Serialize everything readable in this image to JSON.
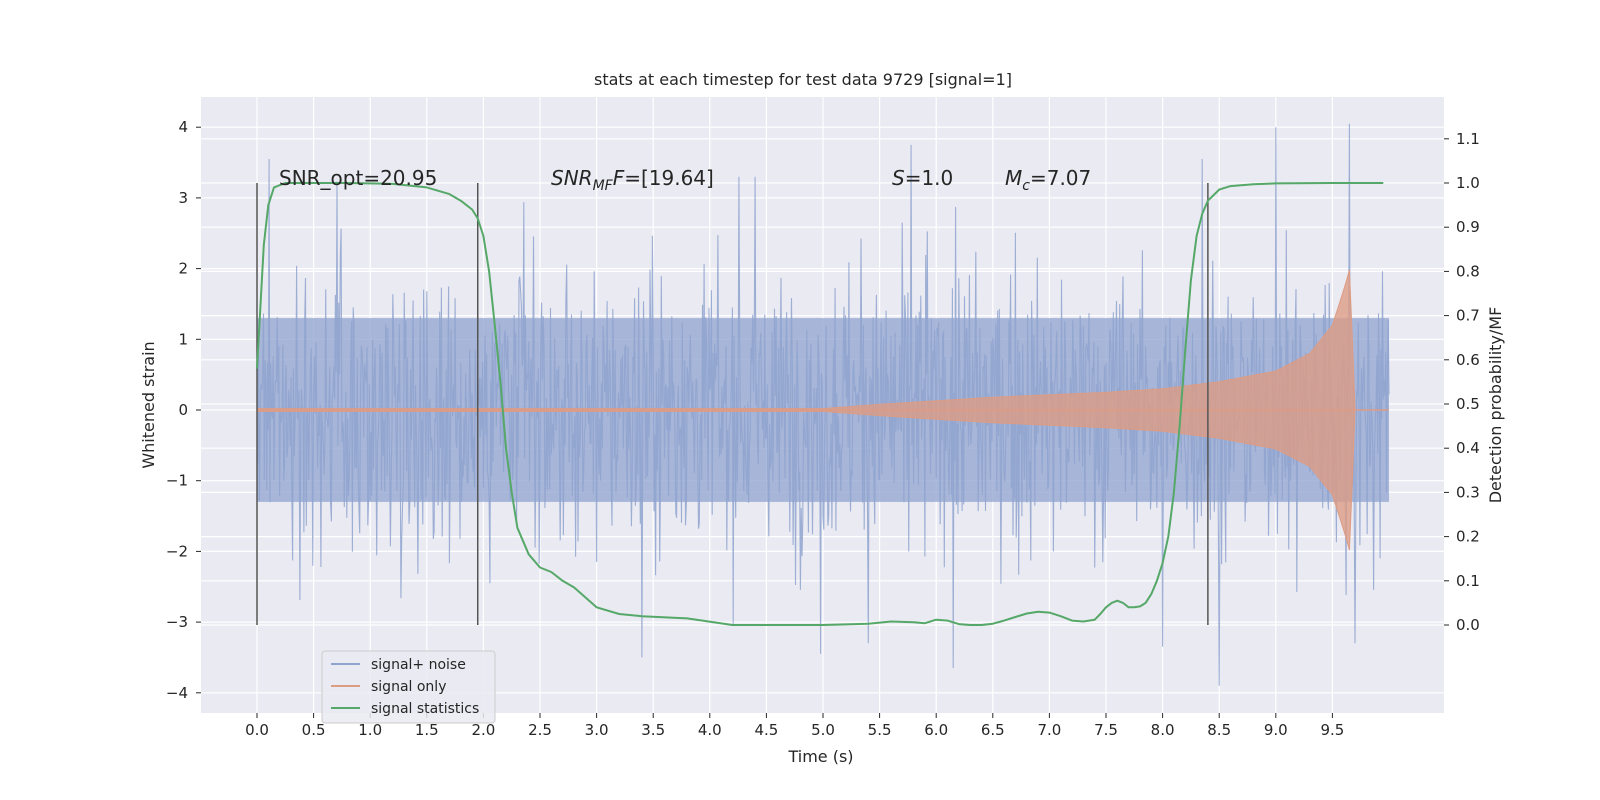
{
  "chart_data": {
    "type": "line",
    "title": "stats at each timestep for test data 9729 [signal=1]",
    "xlabel": "Time (s)",
    "ylabel": "Whitened strain",
    "ylabel_right": "Detection probability/MF",
    "xlim": [
      -0.5,
      10.5
    ],
    "ylim": [
      -4.2,
      4.4
    ],
    "ylim_right": [
      -0.2,
      1.18
    ],
    "x_ticks": [
      "0.0",
      "0.5",
      "1.0",
      "1.5",
      "2.0",
      "2.5",
      "3.0",
      "3.5",
      "4.0",
      "4.5",
      "5.0",
      "5.5",
      "6.0",
      "6.5",
      "7.0",
      "7.5",
      "8.0",
      "8.5",
      "9.0",
      "9.5"
    ],
    "y_ticks": [
      "4",
      "3",
      "2",
      "1",
      "0",
      "−1",
      "−2",
      "−3",
      "−4"
    ],
    "y_ticks_right": [
      "1.1",
      "1.0",
      "0.9",
      "0.8",
      "0.7",
      "0.6",
      "0.5",
      "0.4",
      "0.3",
      "0.2",
      "0.1",
      "0.0"
    ],
    "grid": true,
    "legend_position": "lower-left",
    "annotations": {
      "snr_opt": "SNR_opt=20.95",
      "snr_mf_sym": "SNR",
      "snr_mf_sub": "MF",
      "snr_mf_val": "=[19.64]",
      "s_sym": "S",
      "s_val": "=1.0",
      "mc_sym": "M",
      "mc_sub": "c",
      "mc_val": "=7.07"
    },
    "vertical_lines": [
      0.0,
      1.95,
      8.4
    ],
    "vertical_line_range": [
      0.0,
      1.0
    ],
    "series": [
      {
        "name": "signal+ noise",
        "color": "#8fa3cf",
        "x_range": [
          0.0,
          10.0
        ],
        "typical_amplitude": 1.5,
        "peak_amplitude": 4.05,
        "peaks": [
          {
            "x": 0.11,
            "y": 3.55
          },
          {
            "x": 5.78,
            "y": 3.75
          },
          {
            "x": 9.0,
            "y": 4.0
          },
          {
            "x": 9.65,
            "y": 4.05
          },
          {
            "x": 8.35,
            "y": 3.55
          },
          {
            "x": 6.15,
            "y": -3.65
          },
          {
            "x": 3.4,
            "y": -3.5
          },
          {
            "x": 4.98,
            "y": -3.45
          },
          {
            "x": 8.5,
            "y": -3.9
          },
          {
            "x": 8.0,
            "y": -3.35
          },
          {
            "x": 9.7,
            "y": -3.3
          }
        ]
      },
      {
        "name": "signal only",
        "color": "#dd9c84",
        "description_points": [
          {
            "x": 0.0,
            "amp": 0.02
          },
          {
            "x": 5.0,
            "amp": 0.02
          },
          {
            "x": 5.5,
            "amp": 0.08
          },
          {
            "x": 6.5,
            "amp": 0.18
          },
          {
            "x": 7.5,
            "amp": 0.25
          },
          {
            "x": 8.0,
            "amp": 0.3
          },
          {
            "x": 8.5,
            "amp": 0.4
          },
          {
            "x": 9.0,
            "amp": 0.55
          },
          {
            "x": 9.3,
            "amp": 0.8
          },
          {
            "x": 9.5,
            "amp": 1.2
          },
          {
            "x": 9.62,
            "amp": 1.8
          },
          {
            "x": 9.67,
            "amp": 2.1
          },
          {
            "x": 9.68,
            "amp": 0.0
          },
          {
            "x": 10.0,
            "amp": 0.0
          }
        ]
      },
      {
        "name": "signal statistics",
        "color": "#55a868",
        "axis": "right",
        "x": [
          0.0,
          0.03,
          0.06,
          0.1,
          0.15,
          0.25,
          0.4,
          0.8,
          1.2,
          1.5,
          1.7,
          1.8,
          1.9,
          1.95,
          2.0,
          2.05,
          2.1,
          2.15,
          2.2,
          2.25,
          2.3,
          2.4,
          2.5,
          2.6,
          2.7,
          2.8,
          3.0,
          3.2,
          3.4,
          3.8,
          4.2,
          4.6,
          5.0,
          5.4,
          5.6,
          5.8,
          5.9,
          6.0,
          6.1,
          6.2,
          6.3,
          6.4,
          6.5,
          6.6,
          6.7,
          6.8,
          6.9,
          7.0,
          7.1,
          7.2,
          7.3,
          7.4,
          7.45,
          7.5,
          7.55,
          7.6,
          7.65,
          7.7,
          7.75,
          7.8,
          7.85,
          7.9,
          7.95,
          8.0,
          8.05,
          8.1,
          8.15,
          8.2,
          8.25,
          8.3,
          8.35,
          8.4,
          8.5,
          8.6,
          8.8,
          9.0,
          9.5,
          9.95
        ],
        "y": [
          0.58,
          0.72,
          0.86,
          0.95,
          0.99,
          1.0,
          1.0,
          1.0,
          0.998,
          0.99,
          0.975,
          0.96,
          0.94,
          0.92,
          0.88,
          0.8,
          0.68,
          0.55,
          0.4,
          0.3,
          0.22,
          0.16,
          0.13,
          0.12,
          0.1,
          0.085,
          0.04,
          0.025,
          0.02,
          0.015,
          0.0,
          0.0,
          0.0,
          0.003,
          0.008,
          0.006,
          0.004,
          0.012,
          0.01,
          0.002,
          0.0,
          0.0,
          0.003,
          0.01,
          0.018,
          0.026,
          0.03,
          0.028,
          0.02,
          0.01,
          0.008,
          0.012,
          0.025,
          0.04,
          0.05,
          0.055,
          0.05,
          0.04,
          0.04,
          0.042,
          0.05,
          0.07,
          0.1,
          0.14,
          0.2,
          0.3,
          0.45,
          0.62,
          0.78,
          0.88,
          0.93,
          0.96,
          0.985,
          0.993,
          0.997,
          0.999,
          1.0,
          1.0
        ]
      }
    ]
  }
}
